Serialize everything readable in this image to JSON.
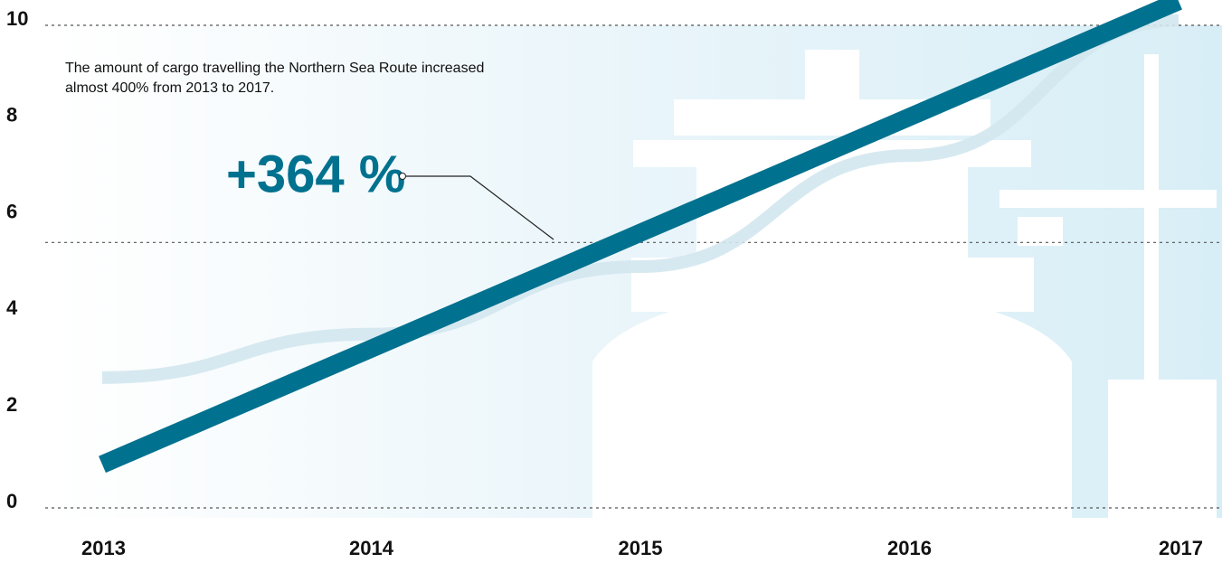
{
  "chart_data": {
    "type": "line",
    "annotation": "The amount of cargo travelling the Northern Sea Route increased almost 400% from 2013 to 2017.",
    "callout": "+364 %",
    "categories": [
      "2013",
      "2014",
      "2015",
      "2016",
      "2017"
    ],
    "series": [
      {
        "color": "#d3e7ee",
        "values": [
          2.7,
          3.6,
          5.0,
          7.3,
          10.1
        ]
      },
      {
        "color": "#00718f",
        "values": [
          0.9,
          3.3,
          5.7,
          8.1,
          10.5
        ]
      }
    ],
    "ylim": [
      0,
      10
    ],
    "yticks": [
      0,
      2,
      4,
      6,
      8,
      10
    ],
    "gridlines": [
      0,
      5.5,
      10
    ]
  }
}
